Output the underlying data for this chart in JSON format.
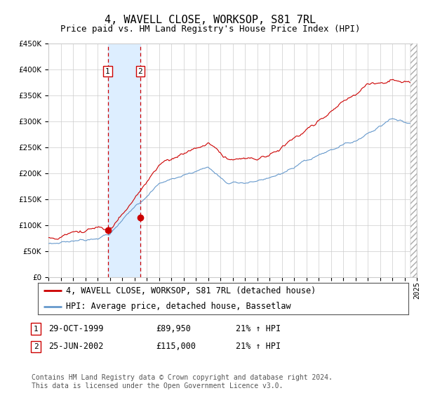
{
  "title": "4, WAVELL CLOSE, WORKSOP, S81 7RL",
  "subtitle": "Price paid vs. HM Land Registry's House Price Index (HPI)",
  "ylim": [
    0,
    450000
  ],
  "yticks": [
    0,
    50000,
    100000,
    150000,
    200000,
    250000,
    300000,
    350000,
    400000,
    450000
  ],
  "year_start": 1995,
  "year_end": 2025,
  "sale1_date": 1999.83,
  "sale1_price": 89950,
  "sale2_date": 2002.48,
  "sale2_price": 115000,
  "legend_line1": "4, WAVELL CLOSE, WORKSOP, S81 7RL (detached house)",
  "legend_line2": "HPI: Average price, detached house, Bassetlaw",
  "table_row1": [
    "1",
    "29-OCT-1999",
    "£89,950",
    "21% ↑ HPI"
  ],
  "table_row2": [
    "2",
    "25-JUN-2002",
    "£115,000",
    "21% ↑ HPI"
  ],
  "footnote": "Contains HM Land Registry data © Crown copyright and database right 2024.\nThis data is licensed under the Open Government Licence v3.0.",
  "line_color_red": "#cc0000",
  "line_color_blue": "#6699cc",
  "shade_color": "#ddeeff",
  "grid_color": "#cccccc",
  "background_color": "#ffffff",
  "title_fontsize": 11,
  "subtitle_fontsize": 9,
  "tick_fontsize": 7.5,
  "legend_fontsize": 8.5,
  "table_fontsize": 8.5
}
